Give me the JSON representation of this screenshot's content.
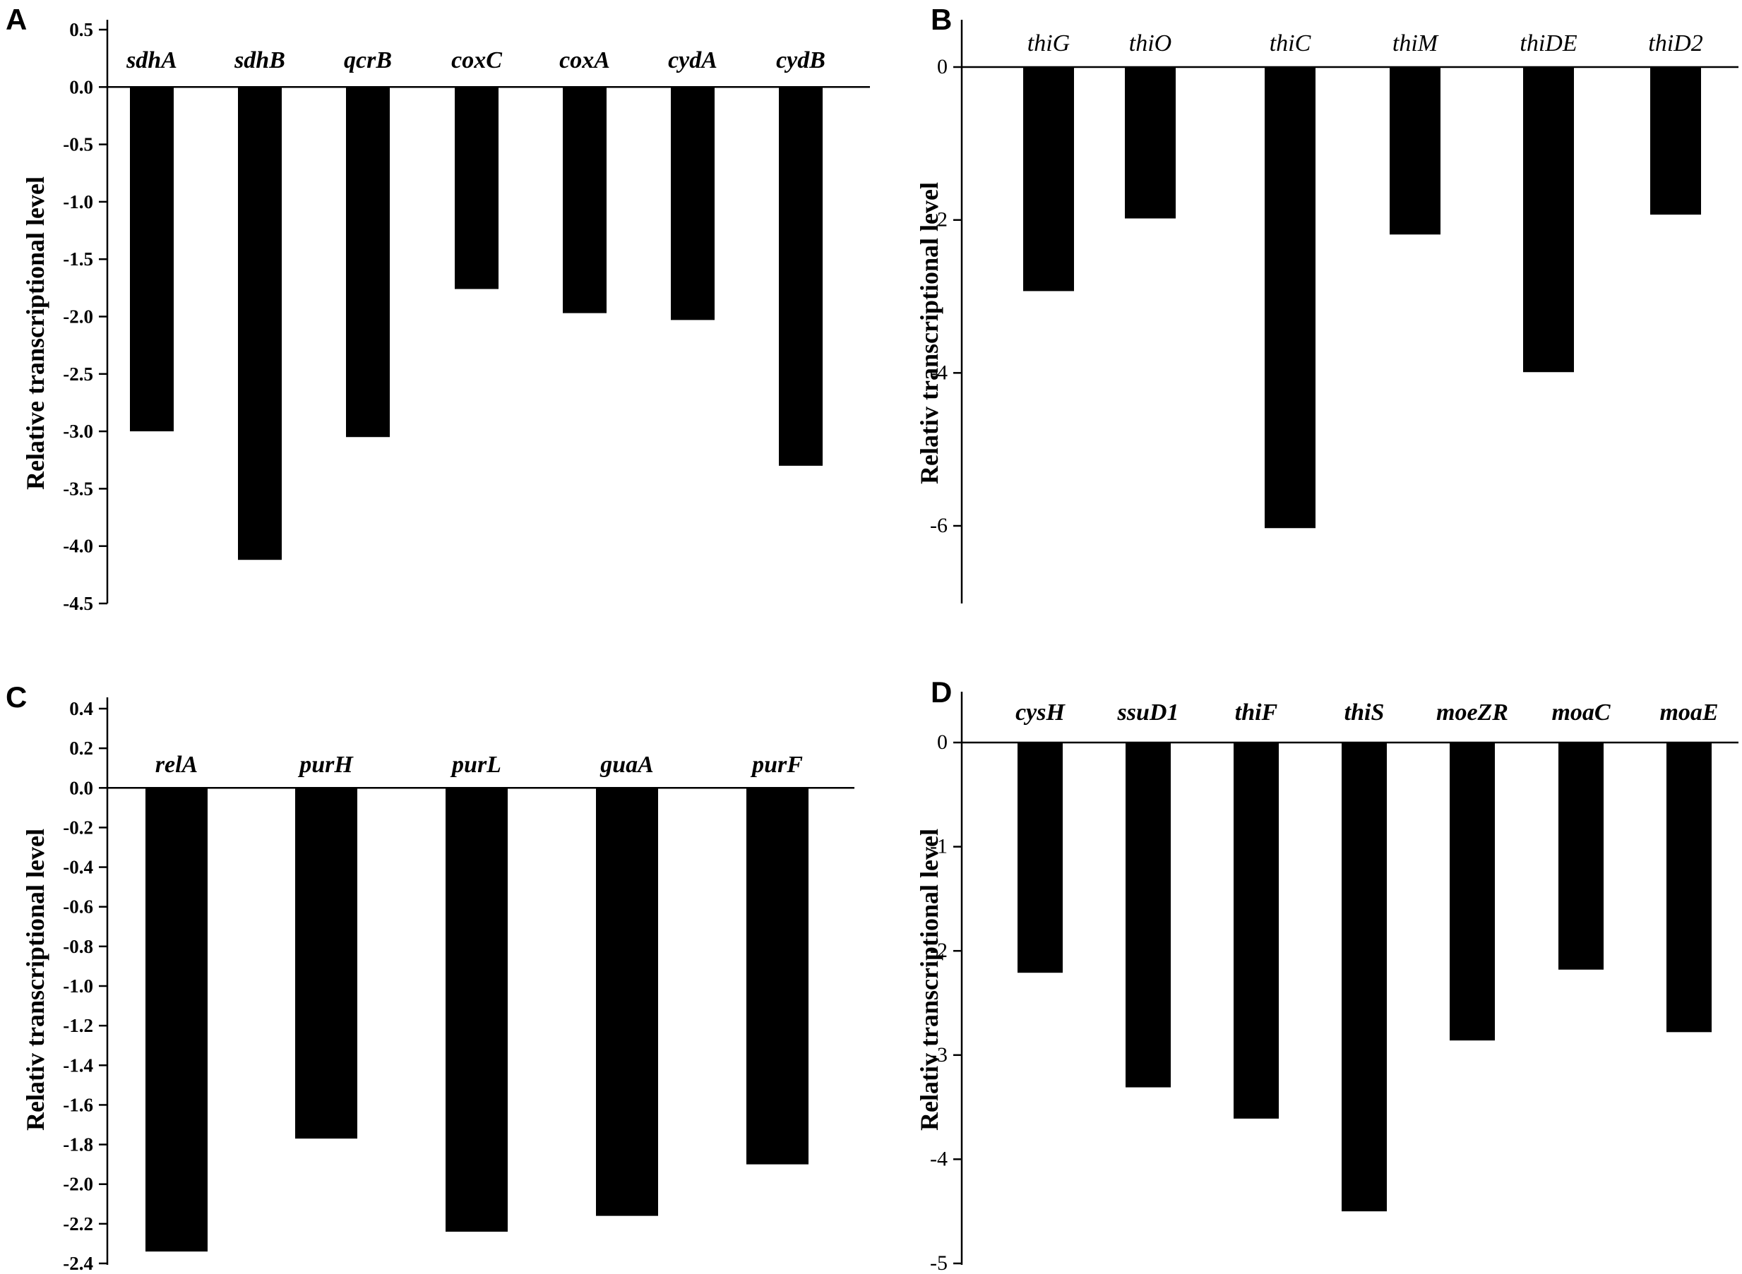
{
  "chart_data": [
    {
      "type": "bar",
      "panel": "A",
      "ylabel": "Relative transcriptional level",
      "categories": [
        "sdhA",
        "sdhB",
        "qcrB",
        "coxC",
        "coxA",
        "cydA",
        "cydB"
      ],
      "values": [
        -3.0,
        -4.12,
        -3.05,
        -1.76,
        -1.97,
        -2.03,
        -3.3
      ],
      "ylim": [
        -4.5,
        0.5
      ],
      "yticks": [
        "0.5",
        "0.0",
        "-0.5",
        "-1.0",
        "-1.5",
        "-2.0",
        "-2.5",
        "-3.0",
        "-3.5",
        "-4.0",
        "-4.5"
      ],
      "grid": false,
      "legend": "none"
    },
    {
      "type": "bar",
      "panel": "B",
      "ylabel": "Relativ transcriptional level",
      "categories": [
        "thiG",
        "thiO",
        "thiC",
        "thiM",
        "thiDE",
        "thiD2"
      ],
      "values": [
        -2.93,
        -1.98,
        -6.03,
        -2.19,
        -3.99,
        -1.93
      ],
      "ylim": [
        -7,
        0.5
      ],
      "yticks": [
        "0",
        "-2",
        "-4",
        "-6"
      ],
      "grid": false,
      "legend": "none"
    },
    {
      "type": "bar",
      "panel": "C",
      "ylabel": "Relativ transcriptional level",
      "categories": [
        "relA",
        "purH",
        "purL",
        "guaA",
        "purF"
      ],
      "values": [
        -2.34,
        -1.77,
        -2.24,
        -2.16,
        -1.9
      ],
      "ylim": [
        -2.4,
        0.4
      ],
      "yticks": [
        "0.4",
        "0.2",
        "0.0",
        "-0.2",
        "-0.4",
        "-0.6",
        "-0.8",
        "-1.0",
        "-1.2",
        "-1.4",
        "-1.6",
        "-1.8",
        "-2.0",
        "-2.2",
        "-2.4"
      ],
      "grid": false,
      "legend": "none"
    },
    {
      "type": "bar",
      "panel": "D",
      "ylabel": "Relativ transcriptional level",
      "categories": [
        "cysH",
        "ssuD1",
        "thiF",
        "thiS",
        "moeZR",
        "moaC",
        "moaE"
      ],
      "values": [
        -2.21,
        -3.31,
        -3.61,
        -4.5,
        -2.86,
        -2.18,
        -2.78
      ],
      "ylim": [
        -5,
        0.5
      ],
      "yticks": [
        "0",
        "-1",
        "-2",
        "-3",
        "-4",
        "-5"
      ],
      "grid": false,
      "legend": "none"
    }
  ]
}
